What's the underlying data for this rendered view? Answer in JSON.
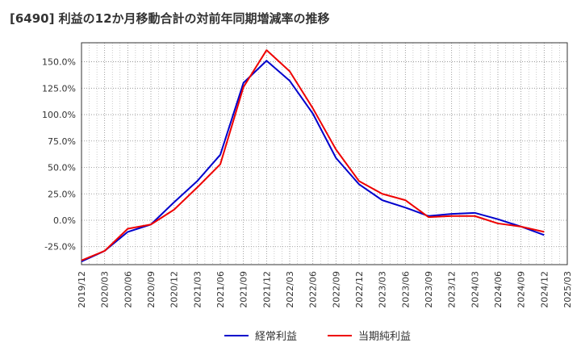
{
  "chart_data": {
    "type": "line",
    "title": "[6490]  利益の12か月移動合計の対前年同期増減率の推移",
    "xlabel": "",
    "ylabel": "",
    "ylim": [
      -42,
      168
    ],
    "yticks": [
      -25,
      0,
      25,
      50,
      75,
      100,
      125,
      150
    ],
    "ytick_labels": [
      "-25.0%",
      "0.0%",
      "25.0%",
      "50.0%",
      "75.0%",
      "100.0%",
      "125.0%",
      "150.0%"
    ],
    "x_tick_labels": [
      "2019/12",
      "2020/03",
      "2020/06",
      "2020/09",
      "2020/12",
      "2021/03",
      "2021/06",
      "2021/09",
      "2021/12",
      "2022/03",
      "2022/06",
      "2022/09",
      "2022/12",
      "2023/03",
      "2023/06",
      "2023/09",
      "2023/12",
      "2024/03",
      "2024/06",
      "2024/09",
      "2024/12",
      "2025/03"
    ],
    "x": [
      "2019/12",
      "2020/03",
      "2020/06",
      "2020/09",
      "2020/12",
      "2021/03",
      "2021/06",
      "2021/09",
      "2021/12",
      "2022/03",
      "2022/06",
      "2022/09",
      "2022/12",
      "2023/03",
      "2023/06",
      "2023/09",
      "2023/12",
      "2024/03",
      "2024/06",
      "2024/09",
      "2024/12"
    ],
    "series": [
      {
        "name": "経常利益",
        "color": "#0000cc",
        "values": [
          -39,
          -29,
          -11,
          -4,
          17,
          37,
          62,
          130,
          151,
          132,
          101,
          59,
          34,
          19,
          12,
          4,
          6,
          7,
          1,
          -6,
          -14
        ]
      },
      {
        "name": "当期純利益",
        "color": "#ee0000",
        "values": [
          -38,
          -29,
          -8,
          -4,
          10,
          31,
          53,
          126,
          161,
          141,
          106,
          67,
          37,
          25,
          19,
          3,
          4,
          4,
          -3,
          -6,
          -11
        ]
      }
    ],
    "grid": true,
    "legend": "bottom"
  }
}
